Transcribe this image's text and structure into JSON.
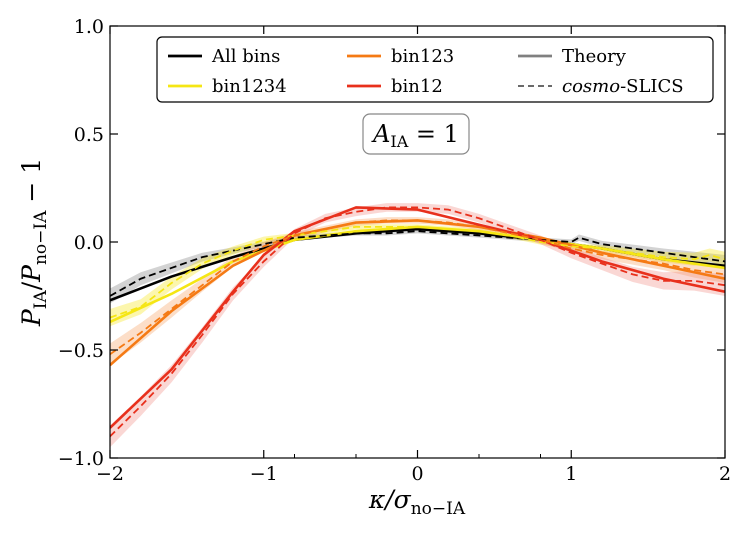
{
  "chart_data": {
    "type": "line",
    "title": "",
    "xlabel": "κ/σno−IA",
    "ylabel": "PIA/Pno−IA − 1",
    "xlim": [
      -2,
      2
    ],
    "ylim": [
      -1.0,
      1.0
    ],
    "xticks": [
      -2,
      -1,
      0,
      1,
      2
    ],
    "xtick_labels": [
      "−2",
      "−1",
      "0",
      "1",
      "2"
    ],
    "yticks": [
      -1.0,
      -0.5,
      0.0,
      0.5,
      1.0
    ],
    "ytick_labels": [
      "−1.0",
      "−0.5",
      "0.0",
      "0.5",
      "1.0"
    ],
    "annotation": {
      "text": "A",
      "sub": "IA",
      "rest": " = 1"
    },
    "legend": {
      "placement": "top",
      "entries": [
        {
          "label": "All bins",
          "color": "#000000",
          "style": "solid"
        },
        {
          "label": "bin1234",
          "color": "#f5e614",
          "style": "solid"
        },
        {
          "label": "bin123",
          "color": "#f57a14",
          "style": "solid"
        },
        {
          "label": "bin12",
          "color": "#e8301c",
          "style": "solid"
        },
        {
          "label": "Theory",
          "color": "#808080",
          "style": "solid"
        },
        {
          "label_italic": "cosmo",
          "label": "-SLICS",
          "color": "#555555",
          "style": "dashed"
        }
      ]
    },
    "series": [
      {
        "name": "All bins",
        "kind": "theory",
        "color": "#000000",
        "x": [
          -2,
          -1.6,
          -1.2,
          -0.8,
          -0.4,
          0,
          0.4,
          0.8,
          1.2,
          1.6,
          2
        ],
        "values": [
          -0.27,
          -0.16,
          -0.07,
          0.01,
          0.04,
          0.06,
          0.04,
          0.01,
          -0.03,
          -0.08,
          -0.11
        ]
      },
      {
        "name": "bin1234",
        "kind": "theory",
        "color": "#f5e614",
        "x": [
          -2,
          -1.6,
          -1.2,
          -0.8,
          -0.4,
          0,
          0.4,
          0.8,
          1.2,
          1.6,
          2
        ],
        "values": [
          -0.37,
          -0.24,
          -0.09,
          0.01,
          0.05,
          0.07,
          0.05,
          0.01,
          -0.03,
          -0.08,
          -0.12
        ]
      },
      {
        "name": "bin123",
        "kind": "theory",
        "color": "#f57a14",
        "x": [
          -2,
          -1.6,
          -1.2,
          -0.8,
          -0.4,
          0,
          0.4,
          0.8,
          1.2,
          1.6,
          2
        ],
        "values": [
          -0.57,
          -0.32,
          -0.11,
          0.03,
          0.09,
          0.1,
          0.07,
          0.02,
          -0.05,
          -0.11,
          -0.17
        ]
      },
      {
        "name": "bin12",
        "kind": "theory",
        "color": "#e8301c",
        "x": [
          -2,
          -1.6,
          -1.2,
          -1.0,
          -0.8,
          -0.4,
          0,
          0.4,
          0.8,
          1.2,
          1.6,
          2
        ],
        "values": [
          -0.86,
          -0.59,
          -0.23,
          -0.06,
          0.05,
          0.16,
          0.15,
          0.08,
          0.01,
          -0.09,
          -0.17,
          -0.23
        ]
      },
      {
        "name": "All bins",
        "kind": "cosmo-SLICS",
        "color": "#000000",
        "band_color": "#808080",
        "x": [
          -2,
          -1.8,
          -1.6,
          -1.4,
          -1.2,
          -1.0,
          -0.8,
          -0.6,
          -0.4,
          -0.2,
          0,
          0.2,
          0.4,
          0.6,
          0.8,
          1.0,
          1.05,
          1.2,
          1.4,
          1.6,
          1.8,
          2
        ],
        "values": [
          -0.25,
          -0.17,
          -0.12,
          -0.07,
          -0.04,
          -0.01,
          0.02,
          0.03,
          0.04,
          0.04,
          0.05,
          0.04,
          0.03,
          0.02,
          0.01,
          0.0,
          0.02,
          -0.01,
          -0.03,
          -0.05,
          -0.07,
          -0.09
        ],
        "band": [
          0.035,
          0.03,
          0.025,
          0.02,
          0.015,
          0.012,
          0.01,
          0.01,
          0.01,
          0.01,
          0.01,
          0.01,
          0.01,
          0.01,
          0.01,
          0.012,
          0.015,
          0.015,
          0.018,
          0.02,
          0.025,
          0.03
        ]
      },
      {
        "name": "bin1234",
        "kind": "cosmo-SLICS",
        "color": "#f5e614",
        "band_color": "#f5e614",
        "x": [
          -2,
          -1.8,
          -1.6,
          -1.4,
          -1.2,
          -1.0,
          -0.8,
          -0.6,
          -0.4,
          -0.2,
          0,
          0.2,
          0.4,
          0.6,
          0.8,
          1.0,
          1.2,
          1.4,
          1.6,
          1.8,
          1.9,
          2
        ],
        "values": [
          -0.35,
          -0.3,
          -0.19,
          -0.1,
          -0.04,
          0.01,
          0.03,
          0.05,
          0.07,
          0.07,
          0.07,
          0.06,
          0.05,
          0.03,
          0.0,
          -0.02,
          -0.03,
          -0.05,
          -0.07,
          -0.08,
          -0.06,
          -0.08
        ],
        "band": [
          0.04,
          0.035,
          0.03,
          0.025,
          0.02,
          0.015,
          0.012,
          0.012,
          0.012,
          0.012,
          0.012,
          0.012,
          0.012,
          0.012,
          0.012,
          0.015,
          0.015,
          0.02,
          0.025,
          0.03,
          0.03,
          0.035
        ]
      },
      {
        "name": "bin123",
        "kind": "cosmo-SLICS",
        "color": "#f57a14",
        "band_color": "#f5a062",
        "x": [
          -2,
          -1.8,
          -1.6,
          -1.4,
          -1.2,
          -1.0,
          -0.8,
          -0.6,
          -0.4,
          -0.2,
          0,
          0.2,
          0.4,
          0.6,
          0.8,
          1.0,
          1.2,
          1.4,
          1.6,
          1.8,
          2
        ],
        "values": [
          -0.52,
          -0.42,
          -0.31,
          -0.2,
          -0.09,
          -0.02,
          0.03,
          0.06,
          0.09,
          0.1,
          0.1,
          0.09,
          0.07,
          0.04,
          0.01,
          -0.03,
          -0.06,
          -0.08,
          -0.1,
          -0.13,
          -0.15
        ],
        "band": [
          0.05,
          0.045,
          0.04,
          0.03,
          0.025,
          0.02,
          0.015,
          0.015,
          0.015,
          0.015,
          0.015,
          0.015,
          0.015,
          0.015,
          0.015,
          0.018,
          0.02,
          0.025,
          0.03,
          0.035,
          0.04
        ]
      },
      {
        "name": "bin12",
        "kind": "cosmo-SLICS",
        "color": "#e8301c",
        "band_color": "#f08b85",
        "x": [
          -2,
          -1.8,
          -1.6,
          -1.4,
          -1.2,
          -1.0,
          -0.8,
          -0.6,
          -0.4,
          -0.2,
          0,
          0.2,
          0.4,
          0.6,
          0.8,
          1.0,
          1.2,
          1.4,
          1.6,
          1.8,
          2
        ],
        "values": [
          -0.9,
          -0.76,
          -0.61,
          -0.43,
          -0.24,
          -0.09,
          0.04,
          0.11,
          0.14,
          0.16,
          0.16,
          0.15,
          0.11,
          0.06,
          0.01,
          -0.05,
          -0.1,
          -0.15,
          -0.18,
          -0.18,
          -0.2
        ],
        "band": [
          0.05,
          0.045,
          0.04,
          0.035,
          0.03,
          0.025,
          0.02,
          0.02,
          0.02,
          0.02,
          0.02,
          0.02,
          0.02,
          0.02,
          0.02,
          0.025,
          0.03,
          0.035,
          0.04,
          0.045,
          0.05
        ]
      }
    ]
  }
}
